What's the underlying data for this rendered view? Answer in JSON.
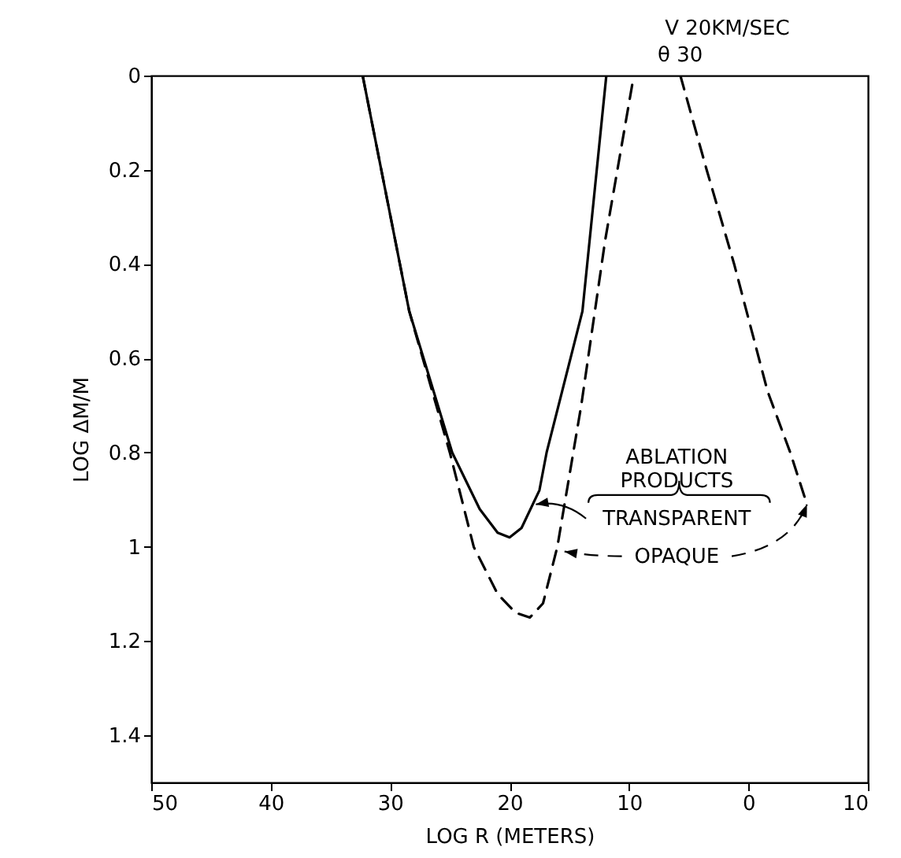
{
  "chart_data": {
    "type": "line",
    "xlabel": "LOG R (METERS)",
    "ylabel": "LOG ΔM/M",
    "annotations": [
      "V 20KM/SEC",
      "θ 30",
      "ABLATION PRODUCTS"
    ],
    "xlim": [
      50,
      -10
    ],
    "xticks": [
      50,
      40,
      30,
      20,
      10,
      0,
      {
        "value": -10,
        "label": "10"
      }
    ],
    "ylim": [
      1.5,
      0
    ],
    "yticks": [
      0,
      0.2,
      0.4,
      0.6,
      0.8,
      1.0,
      1.2,
      1.4
    ],
    "grid": false,
    "legend": "right",
    "marker": "none",
    "series": [
      {
        "name": "TRANSPARENT",
        "color": "#000000",
        "line_style": "solid",
        "x": [
          32.3,
          28.4,
          24.8,
          22.5,
          21,
          20,
          19,
          17.5,
          16.9,
          13.9,
          11.9
        ],
        "values": [
          0,
          0.5,
          0.8,
          0.92,
          0.97,
          0.98,
          0.96,
          0.88,
          0.8,
          0.5,
          0
        ]
      },
      {
        "name": "OPAQUE",
        "color": "#000000",
        "line_style": "dashed",
        "x": [
          32.3,
          28.4,
          25,
          23,
          21,
          19.5,
          18.3,
          17.2,
          16,
          14,
          12,
          9.6,
          7.6,
          5.7,
          3.5,
          1.2,
          -1.6,
          -3.5,
          -4.9
        ],
        "values": [
          0,
          0.5,
          0.8,
          1.0,
          1.1,
          1.14,
          1.15,
          1.12,
          1.0,
          0.7,
          0.35,
          0,
          null,
          0,
          0.2,
          0.4,
          0.67,
          0.8,
          0.91
        ]
      }
    ]
  }
}
